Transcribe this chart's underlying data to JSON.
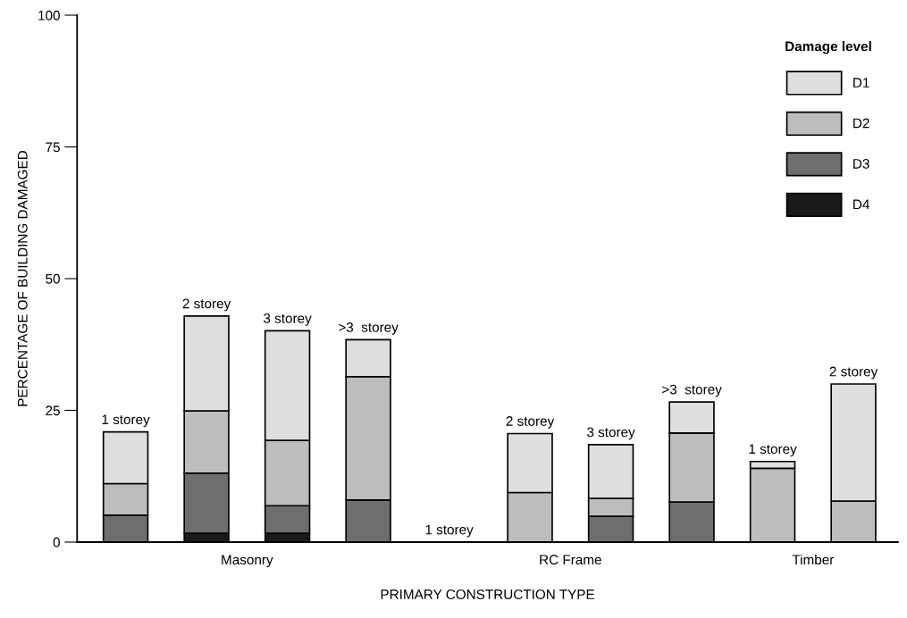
{
  "chart_data": {
    "type": "bar",
    "stacked": true,
    "xlabel": "PRIMARY CONSTRUCTION TYPE",
    "ylabel": "PERCENTAGE OF BUILDING DAMAGED",
    "legend_title": "Damage level",
    "legend": "top right",
    "categories": [
      null,
      null,
      null,
      null,
      null,
      null,
      null,
      null,
      null,
      null
    ],
    "series": [
      {
        "name": "D4",
        "color": "#1a1a1a",
        "values": [
          0,
          1.7,
          1.7,
          0,
          0,
          0,
          0,
          0,
          0,
          0
        ]
      },
      {
        "name": "D3",
        "color": "#6e6e6e",
        "values": [
          5.1,
          11.4,
          5.2,
          8.0,
          0,
          0,
          4.9,
          7.6,
          0,
          0
        ]
      },
      {
        "name": "D2",
        "color": "#bdbdbd",
        "values": [
          6.0,
          11.8,
          12.4,
          23.4,
          0,
          9.4,
          3.4,
          13.1,
          14.0,
          7.8
        ]
      },
      {
        "name": "D1",
        "color": "#dedede",
        "values": [
          9.8,
          18.0,
          20.8,
          7.0,
          0,
          11.2,
          10.2,
          5.9,
          1.3,
          22.2
        ]
      }
    ],
    "annotations": [
      "1 storey",
      "2 storey",
      "3 storey",
      ">3  storey",
      "1 storey",
      "2 storey",
      "3 storey",
      ">3  storey",
      "1 storey",
      "2 storey",
      "Masonry",
      "RC Frame",
      "Timber"
    ],
    "ylim": [
      0,
      100
    ],
    "yticks": [
      0,
      25,
      50,
      75,
      100
    ],
    "grid": false
  }
}
